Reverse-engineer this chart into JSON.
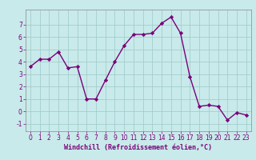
{
  "x": [
    0,
    1,
    2,
    3,
    4,
    5,
    6,
    7,
    8,
    9,
    10,
    11,
    12,
    13,
    14,
    15,
    16,
    17,
    18,
    19,
    20,
    21,
    22,
    23
  ],
  "y": [
    3.6,
    4.2,
    4.2,
    4.8,
    3.5,
    3.6,
    1.0,
    1.0,
    2.5,
    4.0,
    5.3,
    6.2,
    6.2,
    6.3,
    7.1,
    7.6,
    6.3,
    2.8,
    0.4,
    0.5,
    0.4,
    -0.7,
    -0.1,
    -0.3
  ],
  "line_color": "#7a007a",
  "marker": "D",
  "marker_size": 2.2,
  "linewidth": 1.0,
  "bg_color": "#c8eaea",
  "grid_color": "#9ec8c8",
  "xlabel": "Windchill (Refroidissement éolien,°C)",
  "ylim": [
    -1.6,
    8.2
  ],
  "xlim": [
    -0.5,
    23.5
  ],
  "yticks": [
    -1,
    0,
    1,
    2,
    3,
    4,
    5,
    6,
    7
  ],
  "xticks": [
    0,
    1,
    2,
    3,
    4,
    5,
    6,
    7,
    8,
    9,
    10,
    11,
    12,
    13,
    14,
    15,
    16,
    17,
    18,
    19,
    20,
    21,
    22,
    23
  ],
  "tick_fontsize": 5.5,
  "xlabel_fontsize": 6.0,
  "spine_color": "#888888"
}
